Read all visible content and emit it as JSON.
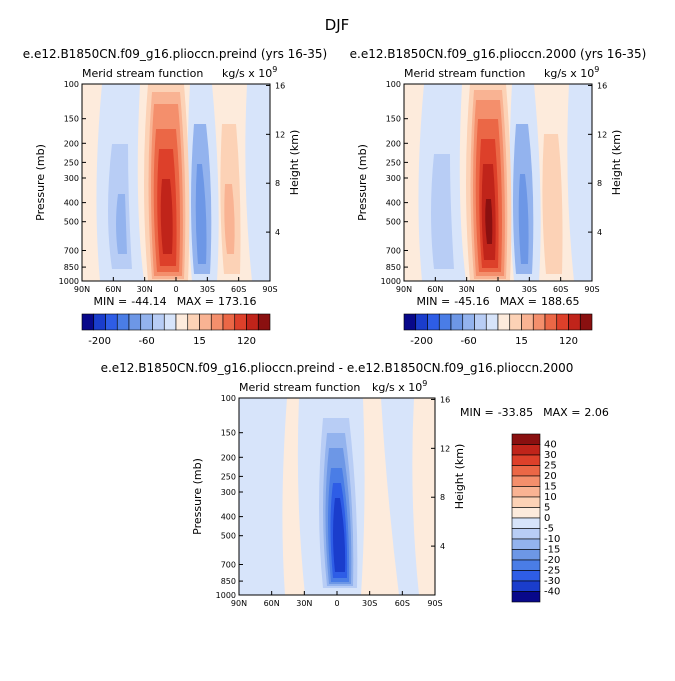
{
  "figure": {
    "title": "DJF",
    "stat_min_label": "MIN =",
    "stat_max_label": "MAX =",
    "variable": "Merid stream function",
    "units": "kg/s x 10",
    "units_exp": "9",
    "yaxis_left": "Pressure (mb)",
    "yaxis_right": "Height (km)"
  },
  "chart_data": [
    {
      "type": "heatmap",
      "title": "e.e12.B1850CN.f09_g16.plioccn.preind (yrs 16-35)",
      "x_ticks": [
        "90N",
        "60N",
        "30N",
        "0",
        "30S",
        "60S",
        "90S"
      ],
      "x_values": [
        90,
        60,
        30,
        0,
        -30,
        -60,
        -90
      ],
      "pressure_ticks": [
        100,
        150,
        200,
        250,
        300,
        400,
        500,
        700,
        850,
        1000
      ],
      "height_ticks": [
        4,
        8,
        12,
        16
      ],
      "ylim": [
        1000,
        100
      ],
      "min": "-44.14",
      "max": "173.16",
      "colorbar_ticks": [
        "-200",
        "-60",
        "15",
        "120"
      ],
      "cells_1e9_kg_s": [
        {
          "lat": 60,
          "value": -5
        },
        {
          "lat": 50,
          "value": -10
        },
        {
          "lat": 40,
          "value": -15
        },
        {
          "lat": -10,
          "value": 120
        },
        {
          "lat": -15,
          "value": 173.16
        },
        {
          "lat": -30,
          "value": -20
        },
        {
          "lat": -50,
          "value": 5
        },
        {
          "lat": -55,
          "value": 10
        }
      ]
    },
    {
      "type": "heatmap",
      "title": "e.e12.B1850CN.f09_g16.plioccn.2000 (yrs 16-35)",
      "x_ticks": [
        "90N",
        "60N",
        "30N",
        "0",
        "30S",
        "60S",
        "90S"
      ],
      "x_values": [
        90,
        60,
        30,
        0,
        -30,
        -60,
        -90
      ],
      "pressure_ticks": [
        100,
        150,
        200,
        250,
        300,
        400,
        500,
        700,
        850,
        1000
      ],
      "height_ticks": [
        4,
        8,
        12,
        16
      ],
      "ylim": [
        1000,
        100
      ],
      "min": "-45.16",
      "max": "188.65",
      "colorbar_ticks": [
        "-200",
        "-60",
        "15",
        "120"
      ],
      "cells_1e9_kg_s": [
        {
          "lat": 60,
          "value": -5
        },
        {
          "lat": 50,
          "value": -10
        },
        {
          "lat": 40,
          "value": -15
        },
        {
          "lat": -10,
          "value": 120
        },
        {
          "lat": -15,
          "value": 188.65
        },
        {
          "lat": -30,
          "value": -20
        },
        {
          "lat": -50,
          "value": 5
        },
        {
          "lat": -55,
          "value": 10
        }
      ]
    },
    {
      "type": "heatmap",
      "title": "e.e12.B1850CN.f09_g16.plioccn.preind - e.e12.B1850CN.f09_g16.plioccn.2000",
      "x_ticks": [
        "90N",
        "60N",
        "30N",
        "0",
        "30S",
        "60S",
        "90S"
      ],
      "x_values": [
        90,
        60,
        30,
        0,
        -30,
        -60,
        -90
      ],
      "pressure_ticks": [
        100,
        150,
        200,
        250,
        300,
        400,
        500,
        700,
        850,
        1000
      ],
      "height_ticks": [
        4,
        8,
        12,
        16
      ],
      "ylim": [
        1000,
        100
      ],
      "min": "-33.85",
      "max": "2.06",
      "colorbar_levels": [
        "40",
        "30",
        "25",
        "20",
        "15",
        "10",
        "5",
        "0",
        "-5",
        "-10",
        "-15",
        "-20",
        "-25",
        "-30",
        "-40"
      ],
      "cells_1e9_kg_s": [
        {
          "lat": 0,
          "value": -33.85
        },
        {
          "lat": -5,
          "value": -20
        },
        {
          "lat": -10,
          "value": -5
        },
        {
          "lat": 40,
          "value": -5
        },
        {
          "lat": -55,
          "value": 2.06
        }
      ]
    }
  ],
  "colors": {
    "diverging": [
      "#08088a",
      "#1a3dcc",
      "#2e5de6",
      "#4a7de6",
      "#6d97e6",
      "#93b3ee",
      "#b8cdf5",
      "#d7e4fa",
      "#fdebdc",
      "#fcd2b6",
      "#f9b393",
      "#f48f6c",
      "#eb6746",
      "#dd402a",
      "#c0241a",
      "#8a1010"
    ]
  }
}
